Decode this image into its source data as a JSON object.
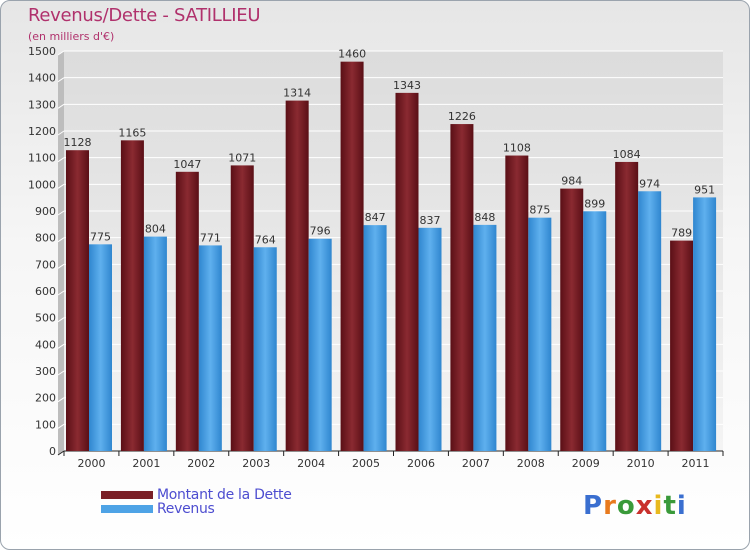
{
  "chart_data": {
    "type": "bar",
    "title": "Revenus/Dette - SATILLIEU",
    "subtitle": "(en milliers d'€)",
    "xlabel": "",
    "ylabel": "",
    "ylim": [
      0,
      1500
    ],
    "yticks": [
      0,
      100,
      200,
      300,
      400,
      500,
      600,
      700,
      800,
      900,
      1000,
      1100,
      1200,
      1300,
      1400,
      1500
    ],
    "grid": true,
    "categories": [
      "2000",
      "2001",
      "2002",
      "2003",
      "2004",
      "2005",
      "2006",
      "2007",
      "2008",
      "2009",
      "2010",
      "2011"
    ],
    "series": [
      {
        "name": "Montant de la Dette",
        "color": "#7a1f26",
        "values": [
          1128,
          1165,
          1047,
          1071,
          1314,
          1460,
          1343,
          1226,
          1108,
          984,
          1084,
          789
        ]
      },
      {
        "name": "Revenus",
        "color": "#4ea3e6",
        "values": [
          775,
          804,
          771,
          764,
          796,
          847,
          837,
          848,
          875,
          899,
          974,
          951
        ]
      }
    ],
    "legend": "bottom-left"
  },
  "logo": {
    "letters": [
      "P",
      "r",
      "o",
      "x",
      "i",
      "t",
      "i"
    ],
    "colors": [
      "#3a6fd0",
      "#e87a1e",
      "#3a9a3a",
      "#c9302c",
      "#e8b91e",
      "#3a9a3a",
      "#3a6fd0"
    ]
  }
}
